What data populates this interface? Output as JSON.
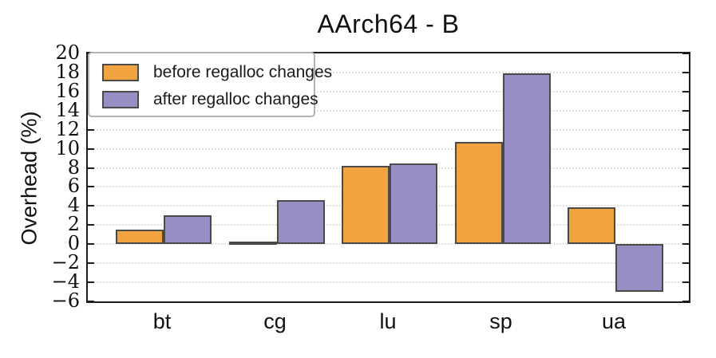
{
  "title": "AArch64 - B",
  "axes": {
    "ylabel": "Overhead (%)",
    "xlabel": ""
  },
  "legend": {
    "items": [
      {
        "label": "before regalloc changes",
        "swatch": "orange"
      },
      {
        "label": "after regalloc changes",
        "swatch": "purple"
      }
    ]
  },
  "chart_data": {
    "type": "bar",
    "title": "AArch64 - B",
    "xlabel": "",
    "ylabel": "Overhead (%)",
    "categories": [
      "bt",
      "cg",
      "lu",
      "sp",
      "ua"
    ],
    "series": [
      {
        "name": "before regalloc changes",
        "color": "#F1A340",
        "values": [
          1.5,
          0.25,
          8.25,
          10.7,
          3.85
        ]
      },
      {
        "name": "after regalloc changes",
        "color": "#998EC3",
        "values": [
          3.0,
          4.6,
          8.45,
          17.9,
          -5.0
        ]
      }
    ],
    "ylim": [
      -6,
      20
    ],
    "ytick_step": 2,
    "grid": "horizontal-dotted",
    "legend_position": "upper left",
    "bar_edge_color": "#4a4a4a",
    "gridline_color": "#e0e0e0"
  }
}
